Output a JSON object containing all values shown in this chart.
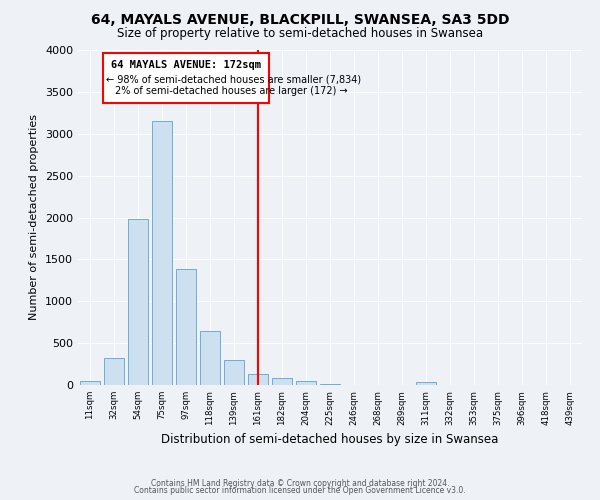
{
  "title": "64, MAYALS AVENUE, BLACKPILL, SWANSEA, SA3 5DD",
  "subtitle": "Size of property relative to semi-detached houses in Swansea",
  "xlabel": "Distribution of semi-detached houses by size in Swansea",
  "ylabel": "Number of semi-detached properties",
  "bin_labels": [
    "11sqm",
    "32sqm",
    "54sqm",
    "75sqm",
    "97sqm",
    "118sqm",
    "139sqm",
    "161sqm",
    "182sqm",
    "204sqm",
    "225sqm",
    "246sqm",
    "268sqm",
    "289sqm",
    "311sqm",
    "332sqm",
    "353sqm",
    "375sqm",
    "396sqm",
    "418sqm",
    "439sqm"
  ],
  "bar_values": [
    50,
    320,
    1980,
    3150,
    1390,
    640,
    300,
    130,
    85,
    50,
    10,
    5,
    3,
    2,
    30,
    0,
    0,
    0,
    0,
    0,
    0
  ],
  "bar_color": "#cce0f0",
  "bar_edgecolor": "#6aaed6",
  "vline_x": 7,
  "vline_color": "red",
  "ylim": [
    0,
    4000
  ],
  "yticks": [
    0,
    500,
    1000,
    1500,
    2000,
    2500,
    3000,
    3500,
    4000
  ],
  "annotation_title": "64 MAYALS AVENUE: 172sqm",
  "annotation_line1": "← 98% of semi-detached houses are smaller (7,834)",
  "annotation_line2": "2% of semi-detached houses are larger (172) →",
  "footer1": "Contains HM Land Registry data © Crown copyright and database right 2024.",
  "footer2": "Contains public sector information licensed under the Open Government Licence v3.0.",
  "bg_color": "#eef2f7",
  "plot_bg_color": "#eef2f7",
  "title_fontsize": 10,
  "subtitle_fontsize": 8.5
}
